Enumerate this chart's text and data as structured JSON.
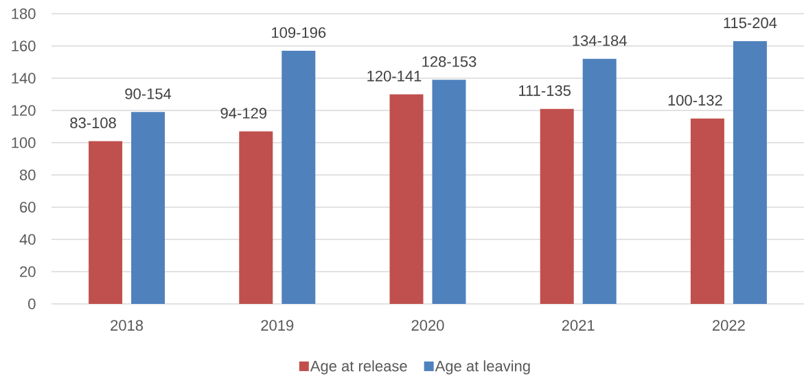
{
  "chart_data": {
    "type": "bar",
    "categories": [
      "2018",
      "2019",
      "2020",
      "2021",
      "2022"
    ],
    "series": [
      {
        "name": "Age at release",
        "color": "#c0504d",
        "values": [
          101,
          107,
          130,
          121,
          115
        ],
        "value_labels": [
          "83-108",
          "94-129",
          "120-141",
          "111-135",
          "100-132"
        ]
      },
      {
        "name": "Age at leaving",
        "color": "#4f81bd",
        "values": [
          119,
          157,
          139,
          152,
          163
        ],
        "value_labels": [
          "90-154",
          "109-196",
          "128-153",
          "134-184",
          "115-204"
        ]
      }
    ],
    "ylim": [
      0,
      180
    ],
    "yticks": [
      0,
      20,
      40,
      60,
      80,
      100,
      120,
      140,
      160,
      180
    ],
    "grid": "y",
    "legend": "bottom"
  }
}
